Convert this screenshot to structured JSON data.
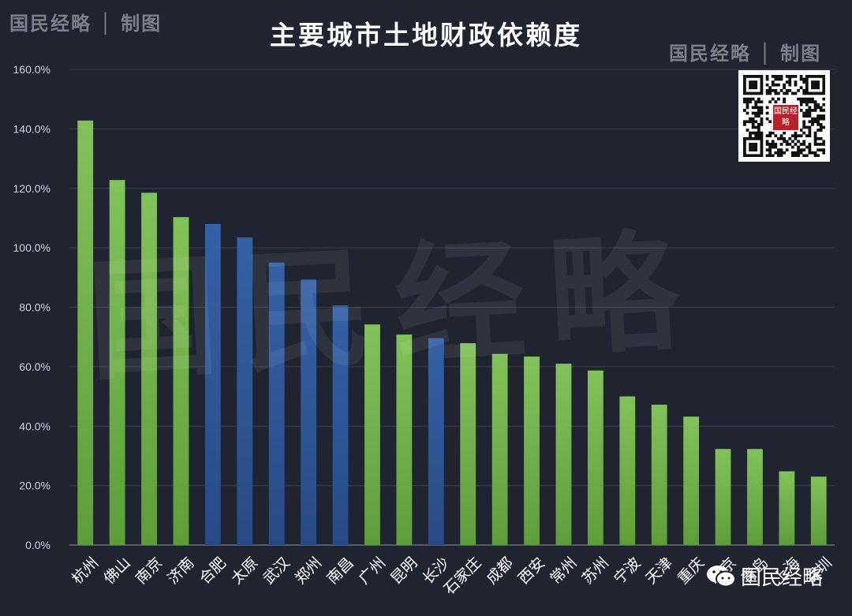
{
  "brand": {
    "top_left": "国民经略 │ 制图",
    "top_right": "国民经略 │ 制图",
    "watermark": "国民经略",
    "qr_logo": "国民经略",
    "wechat_label": "国民经略"
  },
  "colors": {
    "background": "#1f2430",
    "green": "#6fb04a",
    "blue": "#2f5597",
    "grid": "#3a404d",
    "tick_text": "#d0d3d9"
  },
  "chart_data": {
    "type": "bar",
    "title": "主要城市土地财政依赖度",
    "xlabel": "",
    "ylabel": "",
    "ylim": [
      0,
      160
    ],
    "yticks": [
      "0.0%",
      "20.0%",
      "40.0%",
      "60.0%",
      "80.0%",
      "100.0%",
      "120.0%",
      "140.0%",
      "160.0%"
    ],
    "grid": true,
    "categories": [
      "杭州",
      "佛山",
      "南京",
      "济南",
      "合肥",
      "太原",
      "武汉",
      "郑州",
      "南昌",
      "广州",
      "昆明",
      "长沙",
      "石家庄",
      "成都",
      "西安",
      "常州",
      "苏州",
      "宁波",
      "天津",
      "重庆",
      "北京",
      "青岛",
      "上海",
      "深圳"
    ],
    "values": [
      142.8,
      122.8,
      118.5,
      110.3,
      108.0,
      103.5,
      95.0,
      89.3,
      80.6,
      74.2,
      70.8,
      69.6,
      67.9,
      64.3,
      63.4,
      61.0,
      58.7,
      50.0,
      47.2,
      43.2,
      32.3,
      32.3,
      24.8,
      23.0
    ],
    "bar_colors": [
      "green",
      "green",
      "green",
      "green",
      "blue",
      "blue",
      "blue",
      "blue",
      "blue",
      "green",
      "green",
      "blue",
      "green",
      "green",
      "green",
      "green",
      "green",
      "green",
      "green",
      "green",
      "green",
      "green",
      "green",
      "green"
    ]
  }
}
